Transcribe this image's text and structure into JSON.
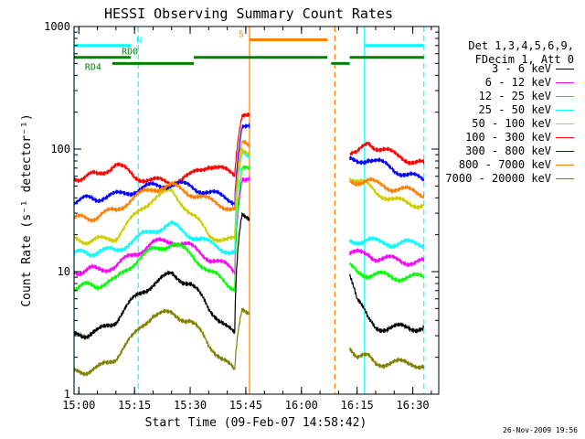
{
  "chart_data": {
    "type": "line",
    "title": "HESSI Observing Summary Count Rates",
    "xlabel": "Start Time (09-Feb-07 14:58:42)",
    "ylabel": "Count Rate (s⁻¹ detector⁻¹)",
    "yscale": "log",
    "ylim": [
      1,
      1000
    ],
    "xlim": [
      "14:58:42",
      "16:37:00"
    ],
    "yticks": [
      {
        "value": 1,
        "label": "1"
      },
      {
        "value": 10,
        "label": "10"
      },
      {
        "value": 100,
        "label": "100"
      },
      {
        "value": 1000,
        "label": "1000"
      }
    ],
    "xticks": [
      {
        "value": "15:00",
        "label": "15:00"
      },
      {
        "value": "15:15",
        "label": "15:15"
      },
      {
        "value": "15:30",
        "label": "15:30"
      },
      {
        "value": "15:45",
        "label": "15:45"
      },
      {
        "value": "16:00",
        "label": "16:00"
      },
      {
        "value": "16:15",
        "label": "16:15"
      },
      {
        "value": "16:30",
        "label": "16:30"
      }
    ],
    "legend_title": [
      "Det 1,3,4,5,6,9,",
      "FDecim 1, Att 0"
    ],
    "legend_position": "right",
    "series": [
      {
        "name": "3 - 6 keV",
        "color": "#000000",
        "x": [
          "14:58:42",
          "15:05",
          "15:10",
          "15:15",
          "15:20",
          "15:25",
          "15:30",
          "15:35",
          "15:40",
          "15:42",
          "15:44",
          "16:13",
          "16:15",
          "16:18",
          "16:20",
          "16:25",
          "16:30",
          "16:33"
        ],
        "y": [
          3,
          3.2,
          4,
          6,
          8,
          9.5,
          8,
          5,
          3.5,
          3,
          30,
          10,
          6,
          4,
          3.5,
          3.5,
          3.5,
          3.5
        ]
      },
      {
        "name": "6 - 12 keV",
        "color": "#ff00ff",
        "x": [
          "14:58:42",
          "15:05",
          "15:10",
          "15:15",
          "15:20",
          "15:25",
          "15:30",
          "15:35",
          "15:40",
          "15:42",
          "15:44",
          "16:13",
          "16:15",
          "16:18",
          "16:20",
          "16:25",
          "16:30",
          "16:33"
        ],
        "y": [
          10,
          10.5,
          11,
          14,
          17,
          18,
          16,
          13,
          11,
          10,
          60,
          14,
          14,
          14,
          13,
          12.5,
          12,
          12
        ]
      },
      {
        "name": "12 - 25 keV",
        "color": "#00ff00",
        "x": [
          "14:58:42",
          "15:05",
          "15:10",
          "15:15",
          "15:20",
          "15:25",
          "15:30",
          "15:35",
          "15:40",
          "15:42",
          "15:44",
          "16:13",
          "16:15",
          "16:18",
          "16:20",
          "16:25",
          "16:30",
          "16:33"
        ],
        "y": [
          7.5,
          7.8,
          8.5,
          12,
          15,
          17,
          14,
          10,
          8,
          7.5,
          70,
          11,
          10,
          9.5,
          9.5,
          9,
          9,
          9
        ]
      },
      {
        "name": "25 - 50 keV",
        "color": "#00ffff",
        "x": [
          "14:58:42",
          "15:05",
          "15:10",
          "15:15",
          "15:20",
          "15:25",
          "15:30",
          "15:35",
          "15:40",
          "15:42",
          "15:44",
          "16:13",
          "16:15",
          "16:18",
          "16:20",
          "16:25",
          "16:30",
          "16:33"
        ],
        "y": [
          14,
          14.5,
          15,
          18,
          22,
          24,
          20,
          17,
          15,
          14,
          90,
          18,
          18,
          18,
          17.5,
          17,
          17,
          17
        ]
      },
      {
        "name": "50 - 100 keV",
        "color": "#cccc00",
        "x": [
          "14:58:42",
          "15:05",
          "15:10",
          "15:15",
          "15:20",
          "15:25",
          "15:30",
          "15:35",
          "15:40",
          "15:42",
          "15:44",
          "16:13",
          "16:15",
          "16:18",
          "16:20",
          "16:25",
          "16:30",
          "16:33"
        ],
        "y": [
          18,
          18,
          19,
          28,
          40,
          45,
          30,
          20,
          18,
          18,
          100,
          60,
          55,
          50,
          45,
          38,
          36,
          35
        ]
      },
      {
        "name": "100 - 300 keV",
        "color": "#ff0000",
        "x": [
          "14:58:42",
          "15:05",
          "15:10",
          "15:15",
          "15:20",
          "15:25",
          "15:30",
          "15:35",
          "15:40",
          "15:42",
          "15:44",
          "16:13",
          "16:15",
          "16:18",
          "16:20",
          "16:25",
          "16:30",
          "16:33"
        ],
        "y": [
          58,
          62,
          75,
          60,
          55,
          54,
          60,
          75,
          65,
          62,
          200,
          90,
          90,
          115,
          105,
          90,
          80,
          75
        ]
      },
      {
        "name": "300 - 800 keV",
        "color": "#0000ff",
        "x": [
          "14:58:42",
          "15:05",
          "15:10",
          "15:15",
          "15:20",
          "15:25",
          "15:30",
          "15:35",
          "15:40",
          "15:42",
          "15:44",
          "16:13",
          "16:15",
          "16:18",
          "16:20",
          "16:25",
          "16:30",
          "16:33"
        ],
        "y": [
          38,
          40,
          42,
          46,
          50,
          52,
          50,
          44,
          40,
          38,
          150,
          80,
          78,
          85,
          80,
          68,
          60,
          55
        ]
      },
      {
        "name": "800 - 7000 keV",
        "color": "#ff8000",
        "x": [
          "14:58:42",
          "15:05",
          "15:10",
          "15:15",
          "15:20",
          "15:25",
          "15:30",
          "15:35",
          "15:40",
          "15:42",
          "15:44",
          "16:13",
          "16:15",
          "16:18",
          "16:20",
          "16:25",
          "16:30",
          "16:33"
        ],
        "y": [
          27,
          28,
          32,
          40,
          48,
          50,
          44,
          38,
          34,
          32,
          110,
          55,
          55,
          55,
          52,
          48,
          45,
          43
        ]
      },
      {
        "name": "7000 - 20000 keV",
        "color": "#808000",
        "x": [
          "14:58:42",
          "15:05",
          "15:10",
          "15:15",
          "15:20",
          "15:25",
          "15:30",
          "15:35",
          "15:40",
          "15:42",
          "15:44",
          "16:13",
          "16:15",
          "16:18",
          "16:20",
          "16:25",
          "16:30",
          "16:33"
        ],
        "y": [
          1.5,
          1.6,
          2,
          3,
          4.5,
          4.5,
          4,
          2.5,
          1.8,
          1.5,
          5,
          2.5,
          2,
          2,
          1.8,
          1.8,
          1.8,
          1.7
        ]
      }
    ],
    "annotations": [
      {
        "label": "N",
        "color": "#00ffff",
        "x_start": "14:58:42",
        "x_end": "15:14",
        "level": 700
      },
      {
        "label": "RD0",
        "color": "#008000",
        "x_start": "14:58:42",
        "x_end": "15:14",
        "level": 560
      },
      {
        "label": "RD4",
        "color": "#008000",
        "x_start": "15:09",
        "x_end": "15:31",
        "level": 500
      },
      {
        "label": "S",
        "color": "#ff8000",
        "x_start": "15:46",
        "x_end": "16:07",
        "level": 780
      },
      {
        "label": "",
        "color": "#008000",
        "x_start": "15:31",
        "x_end": "16:07",
        "level": 560
      },
      {
        "label": "",
        "color": "#008000",
        "x_start": "16:08",
        "x_end": "16:13",
        "level": 500
      },
      {
        "label": "",
        "color": "#008000",
        "x_start": "16:13",
        "x_end": "16:33",
        "level": 560
      },
      {
        "label": "",
        "color": "#00ffff",
        "x_start": "16:17",
        "x_end": "16:33",
        "level": 700
      }
    ],
    "vertical_markers": [
      {
        "x": "14:58:42",
        "color": "#00ffff",
        "style": "solid"
      },
      {
        "x": "15:16",
        "color": "#00ffff",
        "style": "dashed"
      },
      {
        "x": "15:46",
        "color": "#ff8000",
        "style": "solid"
      },
      {
        "x": "16:09",
        "color": "#ff8000",
        "style": "dashed"
      },
      {
        "x": "16:17",
        "color": "#00ffff",
        "style": "solid"
      },
      {
        "x": "16:33",
        "color": "#00ffff",
        "style": "dashed"
      }
    ],
    "data_gap": [
      "15:46",
      "16:13"
    ]
  },
  "timestamp": "26-Nov-2009 19:56"
}
